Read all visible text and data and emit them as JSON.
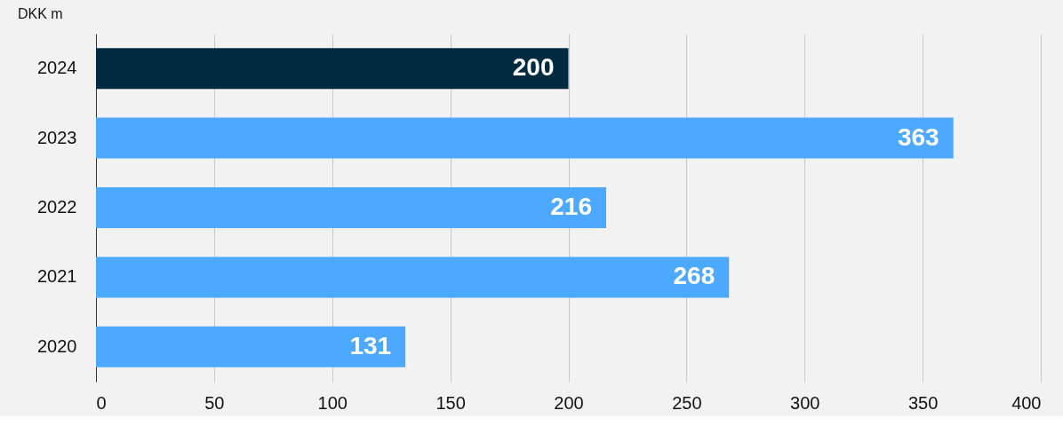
{
  "chart_data": {
    "type": "bar",
    "orientation": "horizontal",
    "title": "DKK m",
    "categories": [
      "2024",
      "2023",
      "2022",
      "2021",
      "2020"
    ],
    "values": [
      200,
      363,
      216,
      268,
      131
    ],
    "colors": [
      "#002a40",
      "#4da9ff",
      "#4da9ff",
      "#4da9ff",
      "#4da9ff"
    ],
    "xlim": [
      0,
      400
    ],
    "xticks": [
      0,
      50,
      100,
      150,
      200,
      250,
      300,
      350,
      400
    ],
    "grid": "x",
    "data_labels": true
  }
}
